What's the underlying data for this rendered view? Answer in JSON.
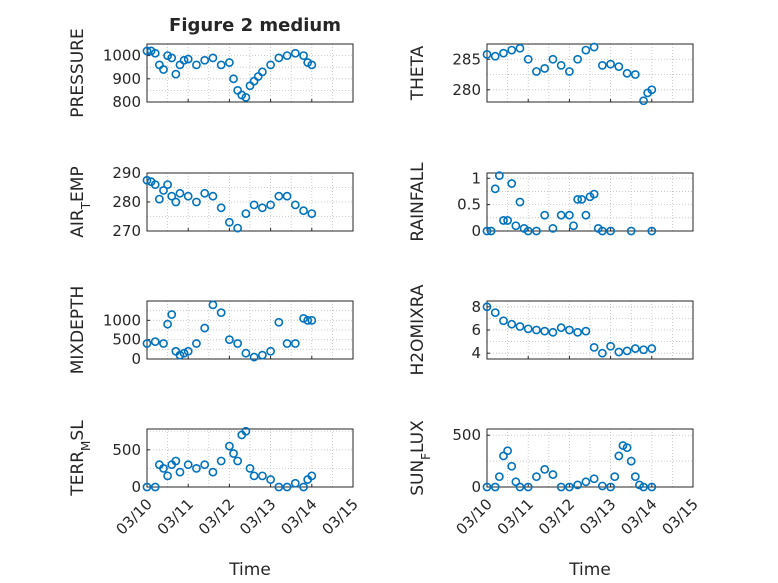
{
  "chart_data": {
    "type": "scatter",
    "title": "Figure 2 medium",
    "xlabel": "Time",
    "x_ticks": [
      "03/10",
      "03/11",
      "03/12",
      "03/13",
      "03/14",
      "03/15"
    ],
    "xlim": [
      0,
      5
    ],
    "grid": true,
    "marker_color": "#0072BD",
    "panels": [
      {
        "ylabel": "PRESSURE",
        "ylim": [
          800,
          1050
        ],
        "yticks": [
          800,
          900,
          1000
        ],
        "x": [
          0,
          0.1,
          0.2,
          0.3,
          0.4,
          0.5,
          0.6,
          0.7,
          0.8,
          0.9,
          1.0,
          1.2,
          1.4,
          1.6,
          1.8,
          2.0,
          2.1,
          2.2,
          2.3,
          2.4,
          2.5,
          2.6,
          2.7,
          2.8,
          3.0,
          3.2,
          3.4,
          3.6,
          3.8,
          3.9,
          4.0
        ],
        "y": [
          1020,
          1020,
          1010,
          960,
          940,
          1000,
          990,
          920,
          960,
          980,
          985,
          960,
          980,
          990,
          960,
          970,
          900,
          850,
          830,
          820,
          870,
          890,
          910,
          930,
          960,
          990,
          1000,
          1010,
          1000,
          970,
          960
        ]
      },
      {
        "ylabel": "THETA",
        "ylim": [
          278,
          287.5
        ],
        "yticks": [
          280,
          285
        ],
        "x": [
          0,
          0.2,
          0.4,
          0.6,
          0.8,
          1.0,
          1.2,
          1.4,
          1.6,
          1.8,
          2.0,
          2.2,
          2.4,
          2.6,
          2.8,
          3.0,
          3.2,
          3.4,
          3.6,
          3.8,
          3.9,
          4.0
        ],
        "y": [
          285.8,
          285.5,
          286,
          286.5,
          286.8,
          285,
          283,
          283.5,
          285,
          284,
          283,
          285,
          286.5,
          287,
          284,
          284.2,
          283.8,
          282.7,
          282.5,
          278.2,
          279.5,
          280
        ]
      },
      {
        "ylabel": "AIR_TEMP",
        "ylim": [
          270,
          290
        ],
        "yticks": [
          270,
          280,
          290
        ],
        "x": [
          0,
          0.1,
          0.2,
          0.3,
          0.4,
          0.5,
          0.6,
          0.7,
          0.8,
          1.0,
          1.2,
          1.4,
          1.6,
          1.8,
          2.0,
          2.2,
          2.4,
          2.6,
          2.8,
          3.0,
          3.2,
          3.4,
          3.6,
          3.8,
          4.0
        ],
        "y": [
          287.5,
          287,
          286,
          281,
          284,
          286,
          282,
          280,
          283,
          282,
          280,
          283,
          282,
          278,
          273,
          271,
          276,
          279,
          278,
          279,
          282,
          282,
          279,
          277,
          276
        ]
      },
      {
        "ylabel": "RAINFALL",
        "ylim": [
          0,
          1.1
        ],
        "yticks": [
          0,
          0.5,
          1
        ],
        "x": [
          0,
          0.1,
          0.2,
          0.3,
          0.4,
          0.5,
          0.6,
          0.7,
          0.8,
          0.9,
          1.0,
          1.2,
          1.4,
          1.6,
          1.8,
          2.0,
          2.1,
          2.2,
          2.3,
          2.4,
          2.5,
          2.6,
          2.7,
          2.8,
          3.0,
          3.5,
          4.0
        ],
        "y": [
          0,
          0,
          0.8,
          1.05,
          0.2,
          0.2,
          0.9,
          0.1,
          0.55,
          0.05,
          0,
          0,
          0.3,
          0.05,
          0.3,
          0.3,
          0.1,
          0.6,
          0.6,
          0.3,
          0.65,
          0.7,
          0.05,
          0,
          0,
          0,
          0
        ]
      },
      {
        "ylabel": "MIXDEPTH",
        "ylim": [
          0,
          1500
        ],
        "yticks": [
          0,
          500,
          1000
        ],
        "x": [
          0,
          0.2,
          0.4,
          0.5,
          0.6,
          0.7,
          0.8,
          0.9,
          1.0,
          1.2,
          1.4,
          1.6,
          1.8,
          2.0,
          2.2,
          2.4,
          2.6,
          2.8,
          3.0,
          3.2,
          3.4,
          3.6,
          3.8,
          3.9,
          4.0
        ],
        "y": [
          400,
          450,
          400,
          900,
          1150,
          200,
          100,
          150,
          200,
          400,
          800,
          1400,
          1200,
          500,
          400,
          150,
          50,
          100,
          200,
          950,
          400,
          400,
          1050,
          1000,
          1000
        ]
      },
      {
        "ylabel": "H2OMIXRA",
        "ylim": [
          3.5,
          8.5
        ],
        "yticks": [
          4,
          6,
          8
        ],
        "x": [
          0,
          0.2,
          0.4,
          0.6,
          0.8,
          1.0,
          1.2,
          1.4,
          1.6,
          1.8,
          2.0,
          2.2,
          2.4,
          2.6,
          2.8,
          3.0,
          3.2,
          3.4,
          3.6,
          3.8,
          4.0
        ],
        "y": [
          8,
          7.5,
          6.8,
          6.5,
          6.3,
          6.1,
          6,
          5.9,
          5.8,
          6.2,
          6,
          5.8,
          5.9,
          4.5,
          4,
          4.6,
          4.1,
          4.2,
          4.4,
          4.3,
          4.4
        ]
      },
      {
        "ylabel": "TERR_MSL",
        "ylim": [
          0,
          780
        ],
        "yticks": [
          0,
          500
        ],
        "x": [
          0,
          0.2,
          0.3,
          0.4,
          0.5,
          0.6,
          0.7,
          0.8,
          1.0,
          1.2,
          1.4,
          1.6,
          1.8,
          2.0,
          2.1,
          2.2,
          2.3,
          2.4,
          2.5,
          2.6,
          2.8,
          3.0,
          3.2,
          3.4,
          3.6,
          3.8,
          3.9,
          4.0
        ],
        "y": [
          0,
          0,
          300,
          250,
          150,
          300,
          350,
          200,
          300,
          250,
          300,
          200,
          350,
          550,
          450,
          350,
          700,
          750,
          250,
          150,
          150,
          100,
          0,
          0,
          50,
          0,
          100,
          150
        ]
      },
      {
        "ylabel": "SUN_FLUX",
        "ylim": [
          0,
          560
        ],
        "yticks": [
          0,
          500
        ],
        "x": [
          0,
          0.2,
          0.3,
          0.4,
          0.5,
          0.6,
          0.7,
          0.8,
          1.0,
          1.2,
          1.4,
          1.6,
          1.8,
          2.0,
          2.2,
          2.4,
          2.6,
          2.8,
          3.0,
          3.1,
          3.2,
          3.3,
          3.4,
          3.5,
          3.6,
          3.7,
          3.8,
          4.0
        ],
        "y": [
          0,
          0,
          100,
          300,
          350,
          200,
          50,
          0,
          0,
          100,
          170,
          120,
          0,
          0,
          20,
          50,
          80,
          10,
          0,
          100,
          300,
          400,
          380,
          250,
          100,
          20,
          0,
          0
        ]
      }
    ]
  }
}
